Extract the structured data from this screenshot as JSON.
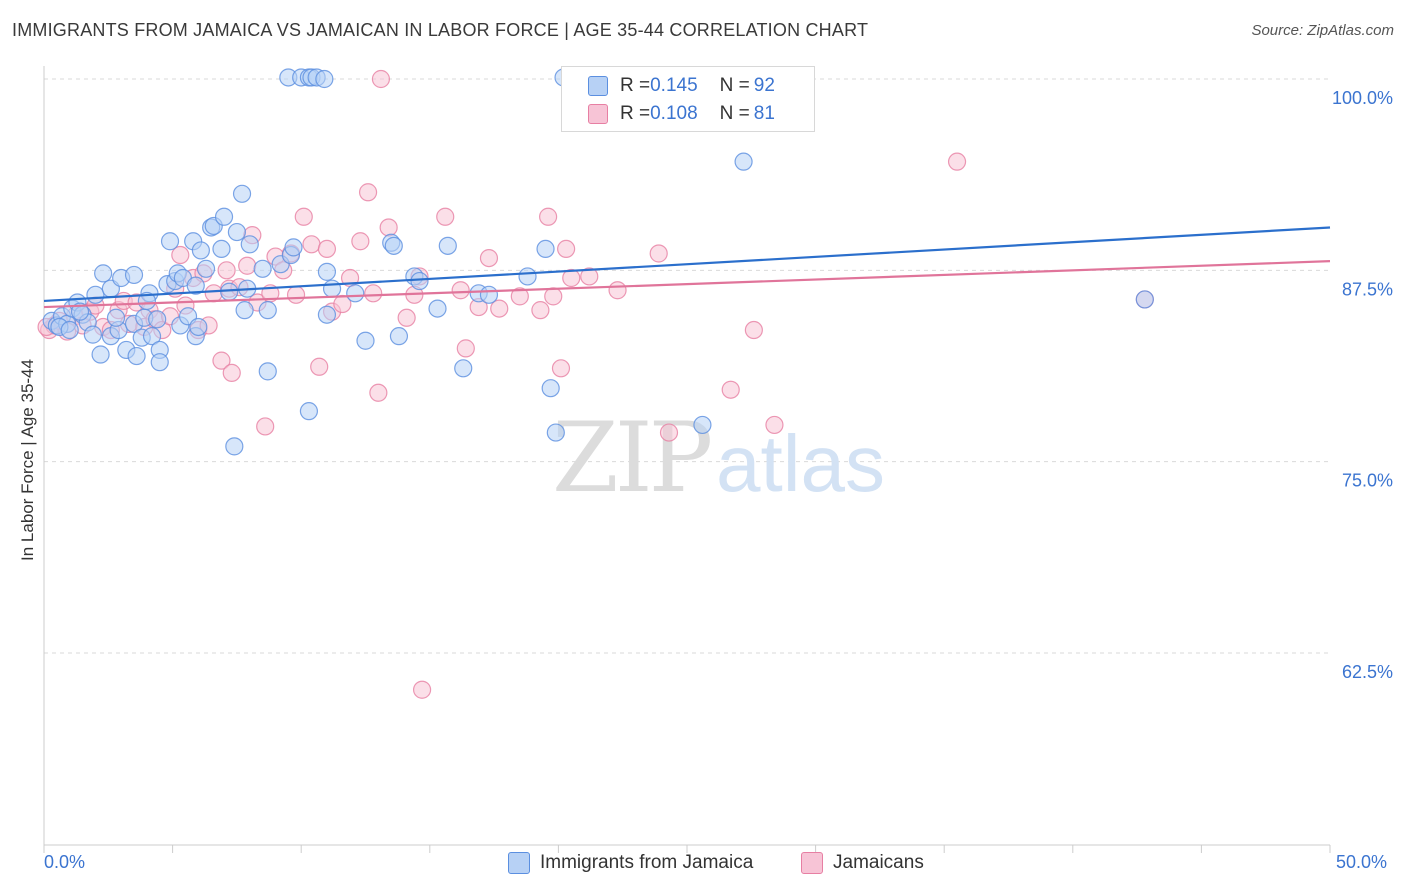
{
  "title": "IMMIGRANTS FROM JAMAICA VS JAMAICAN IN LABOR FORCE | AGE 35-44 CORRELATION CHART",
  "source": "Source: ZipAtlas.com",
  "watermark": {
    "zip": "ZIP",
    "atlas": "atlas"
  },
  "legend": {
    "series1": {
      "r_label": "R = ",
      "r_value": "0.145",
      "n_label": "N = ",
      "n_value": "92"
    },
    "series2": {
      "r_label": "R = ",
      "r_value": "0.108",
      "n_label": "N = ",
      "n_value": "81"
    }
  },
  "colors": {
    "blue": "#5b8fe0",
    "blue_fill": "#b7d1f5",
    "pink": "#e77fa3",
    "pink_fill": "#f7c4d6",
    "blue_line": "#2b6fcc",
    "pink_line": "#e0749a",
    "tick_text": "#3b74d0"
  },
  "chart_data": {
    "type": "scatter",
    "title": "IMMIGRANTS FROM JAMAICA VS JAMAICAN IN LABOR FORCE | AGE 35-44 CORRELATION CHART",
    "xlabel": "",
    "ylabel": "In Labor Force | Age 35-44",
    "xlim": [
      0,
      50
    ],
    "ylim": [
      50,
      102
    ],
    "x_tick_labels": [
      "0.0%",
      "50.0%"
    ],
    "y_ticks": [
      62.5,
      75.0,
      87.5,
      100.0
    ],
    "y_tick_labels": [
      "62.5%",
      "75.0%",
      "87.5%",
      "100.0%"
    ],
    "grid": "horizontal dashed",
    "legend_position": "top-center",
    "series": [
      {
        "name": "Immigrants from Jamaica",
        "color": "blue",
        "trend": {
          "x": [
            0,
            50
          ],
          "y": [
            85.5,
            90.3
          ]
        },
        "points": [
          [
            0.3,
            84.2
          ],
          [
            0.5,
            83.9
          ],
          [
            0.7,
            84.5
          ],
          [
            0.9,
            84.0
          ],
          [
            1.1,
            85.0
          ],
          [
            1.3,
            85.4
          ],
          [
            1.5,
            84.6
          ],
          [
            1.7,
            84.1
          ],
          [
            1.9,
            83.3
          ],
          [
            2.0,
            85.9
          ],
          [
            2.2,
            82.0
          ],
          [
            2.3,
            87.3
          ],
          [
            2.6,
            83.2
          ],
          [
            2.6,
            86.3
          ],
          [
            2.9,
            83.6
          ],
          [
            3.0,
            87.0
          ],
          [
            3.2,
            82.3
          ],
          [
            3.5,
            84.0
          ],
          [
            3.5,
            87.2
          ],
          [
            3.6,
            81.9
          ],
          [
            3.8,
            83.1
          ],
          [
            3.9,
            84.4
          ],
          [
            4.1,
            86.0
          ],
          [
            4.2,
            83.2
          ],
          [
            4.4,
            84.3
          ],
          [
            4.5,
            82.3
          ],
          [
            4.5,
            81.5
          ],
          [
            4.8,
            86.6
          ],
          [
            4.9,
            89.4
          ],
          [
            5.1,
            86.8
          ],
          [
            5.2,
            87.3
          ],
          [
            5.3,
            83.9
          ],
          [
            5.4,
            87.0
          ],
          [
            5.6,
            84.5
          ],
          [
            5.8,
            89.4
          ],
          [
            5.9,
            86.5
          ],
          [
            5.9,
            83.2
          ],
          [
            6.0,
            83.8
          ],
          [
            6.1,
            88.8
          ],
          [
            6.3,
            87.6
          ],
          [
            6.5,
            90.3
          ],
          [
            6.6,
            90.4
          ],
          [
            6.9,
            88.9
          ],
          [
            7.0,
            91.0
          ],
          [
            7.2,
            86.1
          ],
          [
            7.4,
            76.0
          ],
          [
            7.5,
            90.0
          ],
          [
            7.7,
            92.5
          ],
          [
            7.8,
            84.9
          ],
          [
            7.9,
            86.3
          ],
          [
            8.0,
            89.2
          ],
          [
            8.5,
            87.6
          ],
          [
            8.7,
            84.9
          ],
          [
            8.7,
            80.9
          ],
          [
            9.2,
            87.9
          ],
          [
            9.6,
            88.5
          ],
          [
            9.7,
            89.0
          ],
          [
            9.5,
            100.1
          ],
          [
            10.0,
            100.1
          ],
          [
            10.3,
            100.1
          ],
          [
            10.4,
            100.1
          ],
          [
            10.6,
            100.1
          ],
          [
            10.9,
            100.0
          ],
          [
            10.3,
            78.3
          ],
          [
            11.0,
            84.6
          ],
          [
            11.0,
            87.4
          ],
          [
            11.2,
            86.3
          ],
          [
            12.1,
            86.0
          ],
          [
            12.5,
            82.9
          ],
          [
            13.5,
            89.3
          ],
          [
            13.6,
            89.1
          ],
          [
            13.8,
            83.2
          ],
          [
            14.4,
            87.1
          ],
          [
            14.6,
            86.8
          ],
          [
            15.3,
            85.0
          ],
          [
            15.7,
            89.1
          ],
          [
            16.3,
            81.1
          ],
          [
            16.9,
            86.0
          ],
          [
            17.3,
            85.9
          ],
          [
            18.8,
            87.1
          ],
          [
            19.5,
            88.9
          ],
          [
            19.7,
            79.8
          ],
          [
            19.9,
            76.9
          ],
          [
            20.2,
            100.1
          ],
          [
            25.6,
            77.4
          ],
          [
            27.2,
            94.6
          ],
          [
            42.8,
            85.6
          ],
          [
            0.6,
            83.8
          ],
          [
            1.0,
            83.6
          ],
          [
            1.4,
            84.8
          ],
          [
            2.8,
            84.4
          ],
          [
            4.0,
            85.5
          ]
        ]
      },
      {
        "name": "Jamaicans",
        "color": "pink",
        "trend": {
          "x": [
            0,
            50
          ],
          "y": [
            85.1,
            88.1
          ]
        },
        "points": [
          [
            0.2,
            83.6
          ],
          [
            0.4,
            83.9
          ],
          [
            0.6,
            84.2
          ],
          [
            0.9,
            83.5
          ],
          [
            1.2,
            84.5
          ],
          [
            1.5,
            83.9
          ],
          [
            1.8,
            84.8
          ],
          [
            2.0,
            85.2
          ],
          [
            2.3,
            83.8
          ],
          [
            2.6,
            83.6
          ],
          [
            2.9,
            84.9
          ],
          [
            3.1,
            85.5
          ],
          [
            3.3,
            84.0
          ],
          [
            3.6,
            85.4
          ],
          [
            3.9,
            83.8
          ],
          [
            4.1,
            84.9
          ],
          [
            4.3,
            84.3
          ],
          [
            4.6,
            83.6
          ],
          [
            4.9,
            84.5
          ],
          [
            5.1,
            86.3
          ],
          [
            5.3,
            88.5
          ],
          [
            5.5,
            85.2
          ],
          [
            5.8,
            87.0
          ],
          [
            6.0,
            83.6
          ],
          [
            6.2,
            87.3
          ],
          [
            6.4,
            83.9
          ],
          [
            6.6,
            86.0
          ],
          [
            6.9,
            81.6
          ],
          [
            7.1,
            87.5
          ],
          [
            7.2,
            86.3
          ],
          [
            7.3,
            80.8
          ],
          [
            7.6,
            86.4
          ],
          [
            7.9,
            87.8
          ],
          [
            8.1,
            89.8
          ],
          [
            8.3,
            85.4
          ],
          [
            8.6,
            77.3
          ],
          [
            8.8,
            86.0
          ],
          [
            9.0,
            88.4
          ],
          [
            9.3,
            87.5
          ],
          [
            9.6,
            88.6
          ],
          [
            9.8,
            85.9
          ],
          [
            10.1,
            91.0
          ],
          [
            10.4,
            89.2
          ],
          [
            10.7,
            81.2
          ],
          [
            11.0,
            88.9
          ],
          [
            11.2,
            84.8
          ],
          [
            11.6,
            85.3
          ],
          [
            11.9,
            87.0
          ],
          [
            12.3,
            89.4
          ],
          [
            12.6,
            92.6
          ],
          [
            12.8,
            86.0
          ],
          [
            13.0,
            79.5
          ],
          [
            13.1,
            100.0
          ],
          [
            13.4,
            90.3
          ],
          [
            14.1,
            84.4
          ],
          [
            14.4,
            85.9
          ],
          [
            14.6,
            87.1
          ],
          [
            14.7,
            60.1
          ],
          [
            15.6,
            91.0
          ],
          [
            16.2,
            86.2
          ],
          [
            16.4,
            82.4
          ],
          [
            16.9,
            85.1
          ],
          [
            17.3,
            88.3
          ],
          [
            17.7,
            85.0
          ],
          [
            18.5,
            85.8
          ],
          [
            19.3,
            84.9
          ],
          [
            19.6,
            91.0
          ],
          [
            19.8,
            85.8
          ],
          [
            20.1,
            81.1
          ],
          [
            20.3,
            88.9
          ],
          [
            20.5,
            87.0
          ],
          [
            21.2,
            87.1
          ],
          [
            22.3,
            86.2
          ],
          [
            23.9,
            88.6
          ],
          [
            24.3,
            76.9
          ],
          [
            26.7,
            79.7
          ],
          [
            27.6,
            83.6
          ],
          [
            28.4,
            77.4
          ],
          [
            35.5,
            94.6
          ],
          [
            42.8,
            85.6
          ],
          [
            0.1,
            83.8
          ]
        ]
      }
    ]
  },
  "bottom_legend": {
    "series1": "Immigrants from Jamaica",
    "series2": "Jamaicans"
  }
}
